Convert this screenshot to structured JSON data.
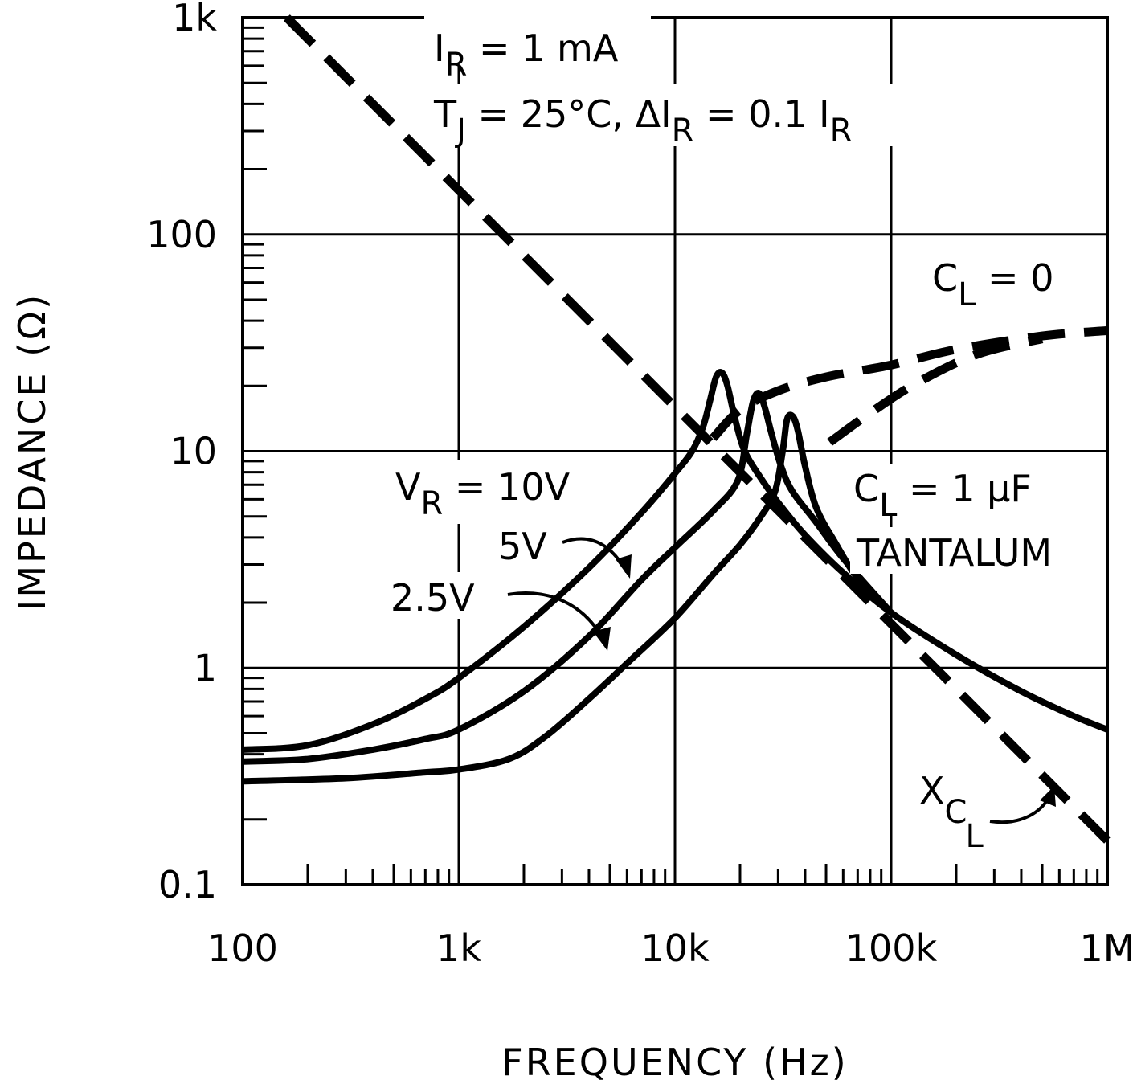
{
  "chart_data": {
    "type": "line",
    "title": "",
    "xlabel": "FREQUENCY (Hz)",
    "ylabel": "IMPEDANCE (Ω)",
    "x_scale": "log",
    "y_scale": "log",
    "xlim": [
      100,
      1000000
    ],
    "ylim": [
      0.1,
      1000
    ],
    "grid": true,
    "x_ticks": [
      {
        "value": 100,
        "label": "100"
      },
      {
        "value": 1000,
        "label": "1k"
      },
      {
        "value": 10000,
        "label": "10k"
      },
      {
        "value": 100000,
        "label": "100k"
      },
      {
        "value": 1000000,
        "label": "1M"
      }
    ],
    "y_ticks": [
      {
        "value": 0.1,
        "label": "0.1"
      },
      {
        "value": 1,
        "label": "1"
      },
      {
        "value": 10,
        "label": "10"
      },
      {
        "value": 100,
        "label": "100"
      },
      {
        "value": 1000,
        "label": "1k"
      }
    ],
    "conditions": {
      "line1": {
        "main": "I",
        "sub": "R",
        "rest": " = 1 mA"
      },
      "line2": {
        "main": "T",
        "sub": "J",
        "rest": " = 25°C,  ΔI",
        "sub2": "R",
        "rest2": " = 0.1 I",
        "sub3": "R"
      }
    },
    "series": [
      {
        "name": "CL = 1 µF, VR = 10V",
        "style": "solid",
        "points": [
          [
            100,
            0.42
          ],
          [
            200,
            0.44
          ],
          [
            400,
            0.55
          ],
          [
            700,
            0.72
          ],
          [
            1000,
            0.9
          ],
          [
            2000,
            1.55
          ],
          [
            4000,
            2.9
          ],
          [
            7000,
            5.2
          ],
          [
            10000,
            7.9
          ],
          [
            12000,
            10
          ],
          [
            13500,
            13
          ],
          [
            14500,
            17
          ],
          [
            15500,
            22
          ],
          [
            16500,
            23
          ],
          [
            17500,
            20
          ],
          [
            19000,
            14
          ],
          [
            21000,
            10
          ],
          [
            25000,
            7.5
          ],
          [
            30000,
            5.8
          ],
          [
            40000,
            4.1
          ],
          [
            60000,
            2.75
          ],
          [
            100000,
            1.8
          ],
          [
            200000,
            1.15
          ],
          [
            400000,
            0.78
          ],
          [
            700000,
            0.6
          ],
          [
            1000000,
            0.52
          ]
        ]
      },
      {
        "name": "CL = 1 µF, VR = 5V",
        "style": "solid",
        "points": [
          [
            100,
            0.37
          ],
          [
            200,
            0.38
          ],
          [
            400,
            0.42
          ],
          [
            700,
            0.47
          ],
          [
            1000,
            0.52
          ],
          [
            2000,
            0.78
          ],
          [
            4000,
            1.4
          ],
          [
            7000,
            2.55
          ],
          [
            10000,
            3.6
          ],
          [
            15000,
            5.3
          ],
          [
            19500,
            7.3
          ],
          [
            21500,
            12
          ],
          [
            23000,
            17
          ],
          [
            24500,
            18.5
          ],
          [
            26000,
            16
          ],
          [
            28000,
            12
          ],
          [
            31000,
            8.5
          ],
          [
            35000,
            6.5
          ],
          [
            45000,
            4.7
          ],
          [
            60000,
            3.2
          ],
          [
            100000,
            1.8
          ]
        ]
      },
      {
        "name": "CL = 1 µF, VR = 2.5V",
        "style": "solid",
        "points": [
          [
            100,
            0.3
          ],
          [
            300,
            0.31
          ],
          [
            700,
            0.33
          ],
          [
            1000,
            0.34
          ],
          [
            1700,
            0.38
          ],
          [
            2500,
            0.48
          ],
          [
            4000,
            0.72
          ],
          [
            6000,
            1.05
          ],
          [
            10000,
            1.7
          ],
          [
            15000,
            2.7
          ],
          [
            20000,
            3.7
          ],
          [
            25000,
            5
          ],
          [
            29000,
            6.5
          ],
          [
            31500,
            10
          ],
          [
            33000,
            14
          ],
          [
            35000,
            14.5
          ],
          [
            37000,
            12.5
          ],
          [
            40000,
            8.5
          ],
          [
            45000,
            5.5
          ],
          [
            55000,
            3.8
          ],
          [
            70000,
            2.6
          ],
          [
            100000,
            1.8
          ]
        ]
      },
      {
        "name": "CL = 0",
        "style": "dashed",
        "points": [
          [
            15000,
            11.5
          ],
          [
            20000,
            15.5
          ],
          [
            30000,
            19
          ],
          [
            50000,
            22
          ],
          [
            100000,
            25
          ],
          [
            200000,
            29.5
          ],
          [
            500000,
            34
          ],
          [
            1000000,
            36
          ]
        ]
      },
      {
        "name": "CL = 0 (alt)",
        "style": "dashed",
        "points": [
          [
            52000,
            11
          ],
          [
            80000,
            15
          ],
          [
            130000,
            20.5
          ],
          [
            250000,
            28
          ],
          [
            500000,
            33
          ]
        ]
      },
      {
        "name": "XCL",
        "style": "dashed",
        "points": [
          [
            160,
            1000
          ],
          [
            1000000,
            0.16
          ]
        ]
      }
    ],
    "annotations": [
      {
        "id": "cl0",
        "main": "C",
        "sub": "L",
        "rest": " = 0"
      },
      {
        "id": "vr",
        "main": "V",
        "sub": "R",
        "rest": " = 10V"
      },
      {
        "id": "v5",
        "text": "5V"
      },
      {
        "id": "v25",
        "text": "2.5V"
      },
      {
        "id": "cl1",
        "main": "C",
        "sub": "L",
        "rest": " = 1 µF"
      },
      {
        "id": "tant",
        "text": "TANTALUM"
      },
      {
        "id": "xcl",
        "main": "X",
        "sub": "C",
        "sub2": "L"
      }
    ]
  }
}
